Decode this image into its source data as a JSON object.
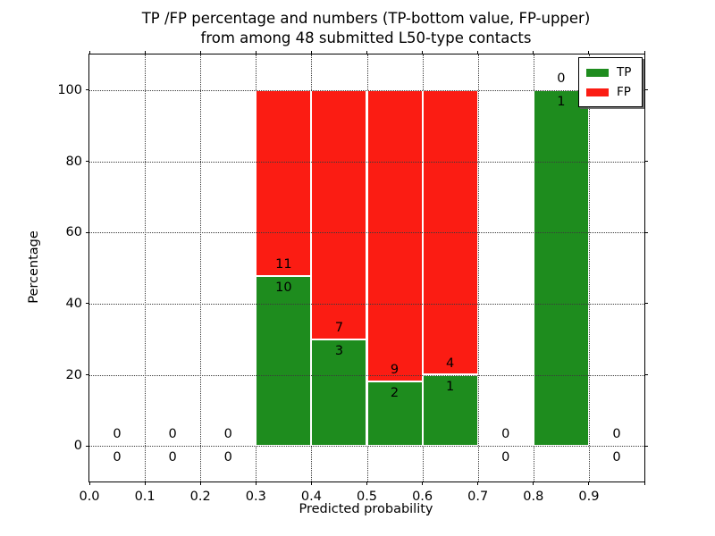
{
  "chart_data": {
    "type": "bar",
    "stacked": true,
    "title_line1": "TP /FP percentage and numbers (TP-bottom value, FP-upper)",
    "title_line2": "from among 48 submitted L50-type contacts",
    "xlabel": "Predicted probability",
    "ylabel": "Percentage",
    "xlim": [
      0.0,
      1.0
    ],
    "ylim": [
      -10,
      110
    ],
    "x_tick_values": [
      0.0,
      0.1,
      0.2,
      0.3,
      0.4,
      0.5,
      0.6,
      0.7,
      0.8,
      0.9,
      1.0
    ],
    "x_tick_labels": [
      "0.0",
      "0.1",
      "0.2",
      "0.3",
      "0.4",
      "0.5",
      "0.6",
      "0.7",
      "0.8",
      "0.9",
      ""
    ],
    "y_tick_values": [
      0,
      20,
      40,
      60,
      80,
      100
    ],
    "y_tick_labels": [
      "0",
      "20",
      "40",
      "60",
      "80",
      "100"
    ],
    "grid": "dotted",
    "legend_position": "upper right",
    "legend": [
      {
        "label": "TP",
        "color": "#1e8c1e"
      },
      {
        "label": "FP",
        "color": "#fb1c13"
      }
    ],
    "bar_value_note": "bars show TP percentage of bin total (green bottom) stacked with FP percentage (red top); labels are raw counts, TP below boundary, FP above",
    "bins": [
      {
        "range": [
          0.0,
          0.1
        ],
        "tp": 0,
        "fp": 0
      },
      {
        "range": [
          0.1,
          0.2
        ],
        "tp": 0,
        "fp": 0
      },
      {
        "range": [
          0.2,
          0.3
        ],
        "tp": 0,
        "fp": 0
      },
      {
        "range": [
          0.3,
          0.4
        ],
        "tp": 10,
        "fp": 11
      },
      {
        "range": [
          0.4,
          0.5
        ],
        "tp": 3,
        "fp": 7
      },
      {
        "range": [
          0.5,
          0.6
        ],
        "tp": 2,
        "fp": 9
      },
      {
        "range": [
          0.6,
          0.7
        ],
        "tp": 1,
        "fp": 4
      },
      {
        "range": [
          0.7,
          0.8
        ],
        "tp": 0,
        "fp": 0
      },
      {
        "range": [
          0.8,
          0.9
        ],
        "tp": 1,
        "fp": 0
      },
      {
        "range": [
          0.9,
          1.0
        ],
        "tp": 0,
        "fp": 0
      }
    ],
    "total_contacts": 48
  },
  "colors": {
    "tp_green": "#1e8c1e",
    "fp_red": "#fb1c13",
    "grid": "#3a3a3a",
    "text": "#000000",
    "background": "#ffffff",
    "bar_edge": "#ffffff"
  }
}
